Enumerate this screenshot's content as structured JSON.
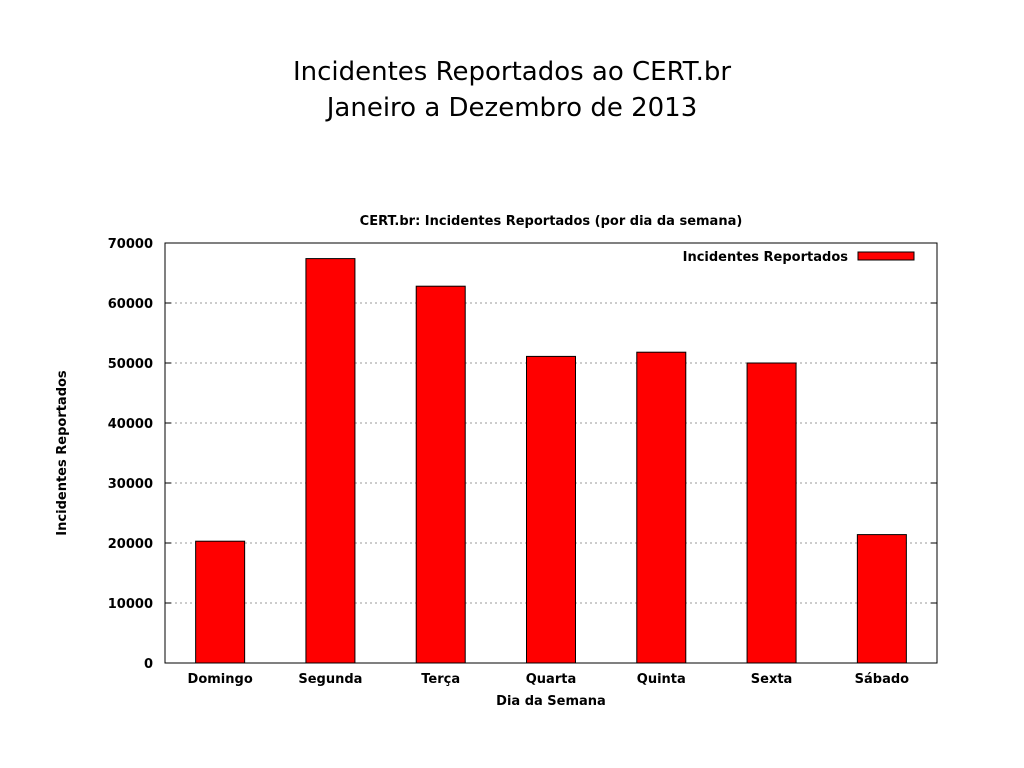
{
  "slide": {
    "title_line1": "Incidentes Reportados ao CERT.br",
    "title_line2": "Janeiro a Dezembro de 2013"
  },
  "chart_data": {
    "type": "bar",
    "title": "CERT.br: Incidentes Reportados (por dia da semana)",
    "xlabel": "Dia da Semana",
    "ylabel": "Incidentes Reportados",
    "categories": [
      "Domingo",
      "Segunda",
      "Terça",
      "Quarta",
      "Quinta",
      "Sexta",
      "Sábado"
    ],
    "series": [
      {
        "name": "Incidentes Reportados",
        "values": [
          20300,
          67400,
          62800,
          51100,
          51800,
          50000,
          21400
        ]
      }
    ],
    "ylim": [
      0,
      70000
    ],
    "yticks": [
      "0",
      "10000",
      "20000",
      "30000",
      "40000",
      "50000",
      "60000",
      "70000"
    ],
    "grid": true,
    "legend": "top-right",
    "bar_color": "#ff0000"
  }
}
